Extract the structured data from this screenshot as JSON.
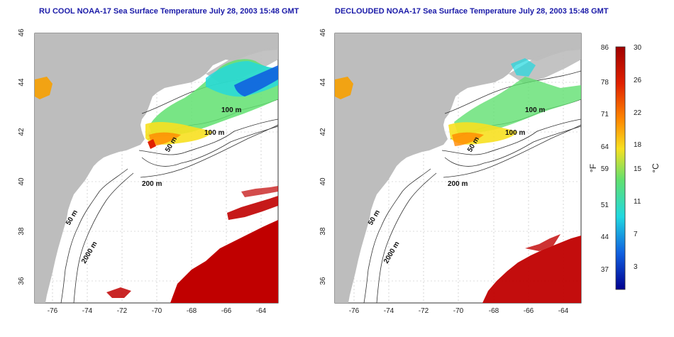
{
  "panels": [
    {
      "title": "RU COOL NOAA-17 Sea Surface Temperature July 28, 2003 15:48 GMT",
      "x_ticks": [
        "-76",
        "-74",
        "-72",
        "-70",
        "-68",
        "-66",
        "-64"
      ],
      "y_ticks": [
        "46",
        "44",
        "42",
        "40",
        "38",
        "36"
      ],
      "contour_labels": [
        "100 m",
        "100 m",
        "50 m",
        "200 m",
        "50 m",
        "2000 m"
      ]
    },
    {
      "title": "DECLOUDED NOAA-17 Sea Surface Temperature July 28, 2003 15:48 GMT",
      "x_ticks": [
        "-76",
        "-74",
        "-72",
        "-70",
        "-68",
        "-66",
        "-64"
      ],
      "y_ticks": [
        "46",
        "44",
        "42",
        "40",
        "38",
        "36"
      ],
      "contour_labels": [
        "100 m",
        "100 m",
        "50 m",
        "200 m",
        "50 m",
        "2000 m"
      ]
    }
  ],
  "colorbar": {
    "fahrenheit_unit": "°F",
    "celsius_unit": "°C",
    "fahrenheit_ticks": [
      "86",
      "78",
      "71",
      "64",
      "59",
      "51",
      "44",
      "37"
    ],
    "celsius_ticks": [
      "30",
      "26",
      "22",
      "18",
      "15",
      "11",
      "7",
      "3"
    ]
  },
  "colors": {
    "land": "#bdbdbd",
    "ocean": "#ffffff",
    "title": "#1a1aa8",
    "warm_sst": "#c00000"
  }
}
